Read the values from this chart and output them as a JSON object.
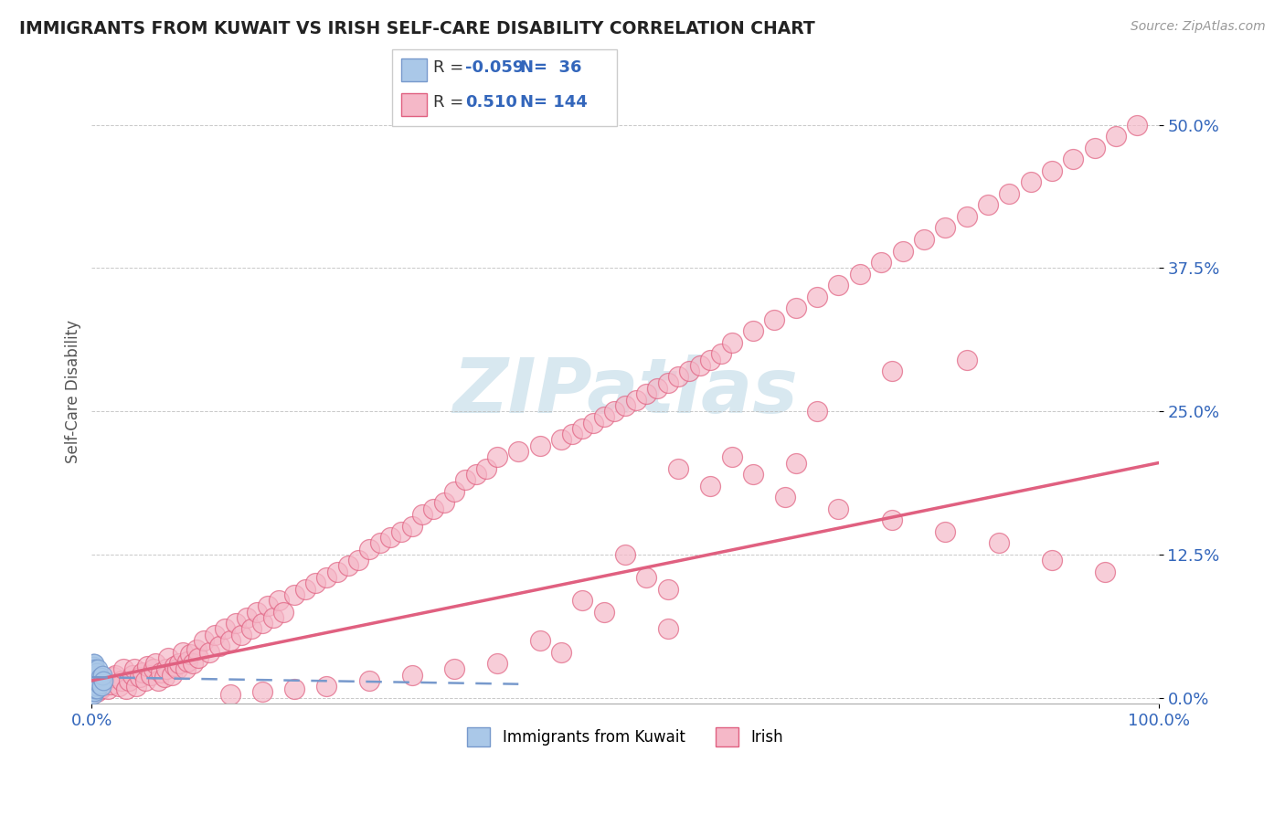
{
  "title": "IMMIGRANTS FROM KUWAIT VS IRISH SELF-CARE DISABILITY CORRELATION CHART",
  "source": "Source: ZipAtlas.com",
  "ylabel": "Self-Care Disability",
  "xlim": [
    0.0,
    1.0
  ],
  "ylim": [
    -0.005,
    0.54
  ],
  "yticks": [
    0.0,
    0.125,
    0.25,
    0.375,
    0.5
  ],
  "ytick_labels": [
    "0.0%",
    "12.5%",
    "25.0%",
    "37.5%",
    "50.0%"
  ],
  "xticks": [
    0.0,
    1.0
  ],
  "xtick_labels": [
    "0.0%",
    "100.0%"
  ],
  "blue_color": "#aac8e8",
  "pink_color": "#f5b8c8",
  "blue_line_color": "#7799cc",
  "pink_line_color": "#e06080",
  "axis_label_color": "#3366bb",
  "watermark_color": "#d8e8f0",
  "background_color": "#ffffff",
  "kuwait_x": [
    0.001,
    0.001,
    0.001,
    0.001,
    0.001,
    0.001,
    0.001,
    0.001,
    0.001,
    0.001,
    0.001,
    0.001,
    0.002,
    0.002,
    0.002,
    0.002,
    0.002,
    0.002,
    0.002,
    0.002,
    0.003,
    0.003,
    0.003,
    0.003,
    0.004,
    0.004,
    0.004,
    0.005,
    0.005,
    0.006,
    0.006,
    0.007,
    0.008,
    0.009,
    0.01,
    0.011
  ],
  "kuwait_y": [
    0.01,
    0.015,
    0.02,
    0.025,
    0.005,
    0.008,
    0.012,
    0.018,
    0.022,
    0.03,
    0.003,
    0.028,
    0.01,
    0.015,
    0.02,
    0.025,
    0.005,
    0.018,
    0.022,
    0.03,
    0.012,
    0.018,
    0.008,
    0.025,
    0.01,
    0.02,
    0.015,
    0.008,
    0.022,
    0.015,
    0.025,
    0.012,
    0.018,
    0.01,
    0.02,
    0.015
  ],
  "irish_x": [
    0.005,
    0.008,
    0.01,
    0.012,
    0.015,
    0.018,
    0.02,
    0.022,
    0.025,
    0.028,
    0.03,
    0.032,
    0.035,
    0.038,
    0.04,
    0.042,
    0.045,
    0.048,
    0.05,
    0.052,
    0.055,
    0.058,
    0.06,
    0.062,
    0.065,
    0.068,
    0.07,
    0.072,
    0.075,
    0.078,
    0.08,
    0.082,
    0.085,
    0.088,
    0.09,
    0.092,
    0.095,
    0.098,
    0.1,
    0.105,
    0.11,
    0.115,
    0.12,
    0.125,
    0.13,
    0.135,
    0.14,
    0.145,
    0.15,
    0.155,
    0.16,
    0.165,
    0.17,
    0.175,
    0.18,
    0.19,
    0.2,
    0.21,
    0.22,
    0.23,
    0.24,
    0.25,
    0.26,
    0.27,
    0.28,
    0.29,
    0.3,
    0.31,
    0.32,
    0.33,
    0.34,
    0.35,
    0.36,
    0.37,
    0.38,
    0.4,
    0.42,
    0.44,
    0.45,
    0.46,
    0.47,
    0.48,
    0.49,
    0.5,
    0.51,
    0.52,
    0.53,
    0.54,
    0.55,
    0.56,
    0.57,
    0.58,
    0.59,
    0.6,
    0.62,
    0.64,
    0.66,
    0.68,
    0.7,
    0.72,
    0.74,
    0.76,
    0.78,
    0.8,
    0.82,
    0.84,
    0.86,
    0.88,
    0.9,
    0.92,
    0.94,
    0.96,
    0.98,
    0.55,
    0.6,
    0.65,
    0.7,
    0.75,
    0.8,
    0.85,
    0.9,
    0.95,
    0.75,
    0.82,
    0.68,
    0.58,
    0.62,
    0.66,
    0.5,
    0.52,
    0.54,
    0.46,
    0.48,
    0.54,
    0.42,
    0.44,
    0.38,
    0.34,
    0.3,
    0.26,
    0.22,
    0.19,
    0.16,
    0.13
  ],
  "irish_y": [
    0.005,
    0.008,
    0.01,
    0.015,
    0.008,
    0.012,
    0.018,
    0.02,
    0.01,
    0.015,
    0.025,
    0.008,
    0.015,
    0.02,
    0.025,
    0.01,
    0.018,
    0.022,
    0.015,
    0.028,
    0.02,
    0.025,
    0.03,
    0.015,
    0.022,
    0.018,
    0.025,
    0.035,
    0.02,
    0.028,
    0.025,
    0.03,
    0.04,
    0.025,
    0.032,
    0.038,
    0.03,
    0.042,
    0.035,
    0.05,
    0.04,
    0.055,
    0.045,
    0.06,
    0.05,
    0.065,
    0.055,
    0.07,
    0.06,
    0.075,
    0.065,
    0.08,
    0.07,
    0.085,
    0.075,
    0.09,
    0.095,
    0.1,
    0.105,
    0.11,
    0.115,
    0.12,
    0.13,
    0.135,
    0.14,
    0.145,
    0.15,
    0.16,
    0.165,
    0.17,
    0.18,
    0.19,
    0.195,
    0.2,
    0.21,
    0.215,
    0.22,
    0.225,
    0.23,
    0.235,
    0.24,
    0.245,
    0.25,
    0.255,
    0.26,
    0.265,
    0.27,
    0.275,
    0.28,
    0.285,
    0.29,
    0.295,
    0.3,
    0.31,
    0.32,
    0.33,
    0.34,
    0.35,
    0.36,
    0.37,
    0.38,
    0.39,
    0.4,
    0.41,
    0.42,
    0.43,
    0.44,
    0.45,
    0.46,
    0.47,
    0.48,
    0.49,
    0.5,
    0.2,
    0.21,
    0.175,
    0.165,
    0.155,
    0.145,
    0.135,
    0.12,
    0.11,
    0.285,
    0.295,
    0.25,
    0.185,
    0.195,
    0.205,
    0.125,
    0.105,
    0.095,
    0.085,
    0.075,
    0.06,
    0.05,
    0.04,
    0.03,
    0.025,
    0.02,
    0.015,
    0.01,
    0.008,
    0.005,
    0.003
  ],
  "irish_trend_x": [
    0.0,
    1.0
  ],
  "irish_trend_y": [
    0.015,
    0.205
  ],
  "kuwait_trend_x": [
    0.0,
    0.4
  ],
  "kuwait_trend_y": [
    0.018,
    0.012
  ]
}
